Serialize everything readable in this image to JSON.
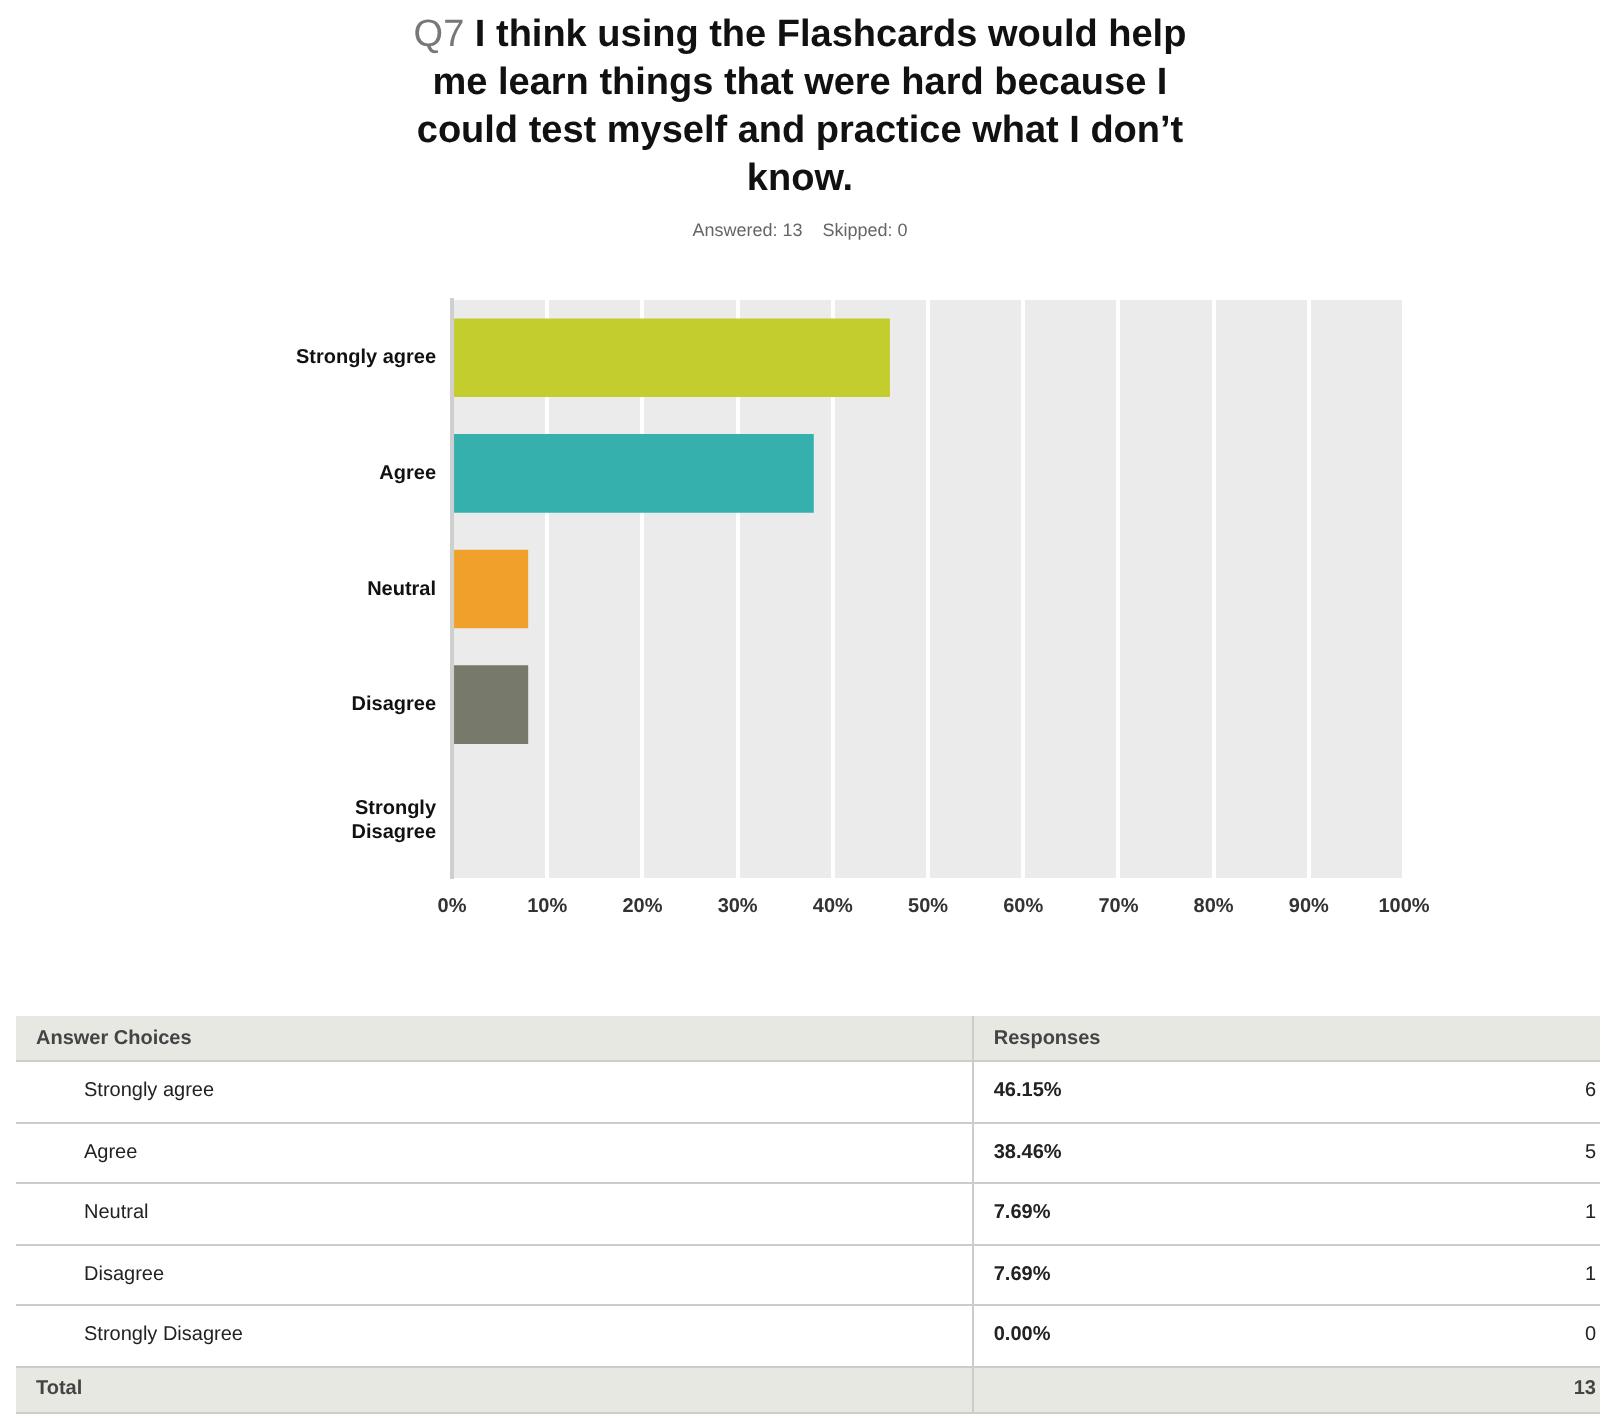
{
  "chart_data": [
    {
      "type": "bar",
      "orientation": "horizontal",
      "title": "Q7 I think using the Flashcards would help me learn things that were hard because I could test myself and practice what I don’t know.",
      "subtitle": "Answered: 13    Skipped: 0",
      "categories": [
        "Strongly agree",
        "Agree",
        "Neutral",
        "Disagree",
        "Strongly Disagree"
      ],
      "values": [
        46,
        38,
        8,
        8,
        0
      ],
      "colors": [
        "#c3cd2e",
        "#36b0ad",
        "#f0a12b",
        "#77796a",
        "#4a8fc0"
      ],
      "xlim": [
        0,
        100
      ],
      "xticks": [
        {
          "value": 0,
          "label": "0%"
        },
        {
          "value": 10,
          "label": "10%"
        },
        {
          "value": 20,
          "label": "20%"
        },
        {
          "value": 30,
          "label": "30%"
        },
        {
          "value": 40,
          "label": "40%"
        },
        {
          "value": 50,
          "label": "50%"
        },
        {
          "value": 60,
          "label": "60%"
        },
        {
          "value": 70,
          "label": "70%"
        },
        {
          "value": 80,
          "label": "80%"
        },
        {
          "value": 90,
          "label": "90%"
        },
        {
          "value": 100,
          "label": "100%"
        }
      ],
      "grid": "x",
      "legend": false
    },
    {
      "type": "other",
      "categories": [
        "Strongly agree",
        "Agree",
        "Neutral",
        "Disagree",
        "Strongly Disagree"
      ],
      "annotations": [
        "Answer Choices",
        "Responses",
        "46.15%",
        "6",
        "38.46%",
        "5",
        "7.69%",
        "1",
        "7.69%",
        "1",
        "0.00%",
        "0",
        "Total",
        "13"
      ]
    }
  ]
}
